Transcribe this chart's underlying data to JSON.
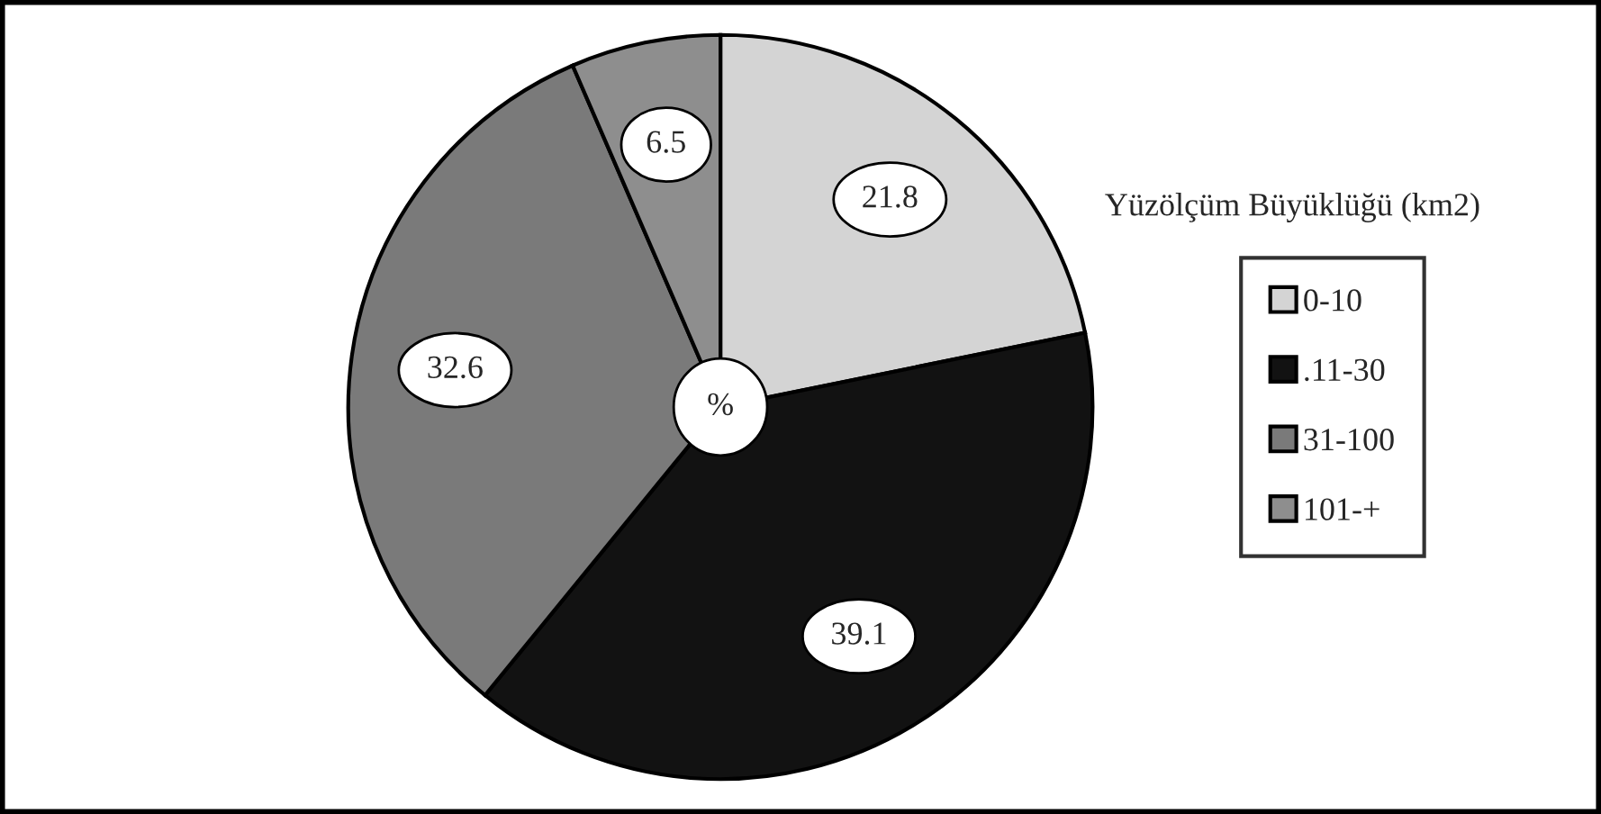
{
  "chart_data": {
    "type": "pie",
    "legend_title": "Yüzölçüm Büyüklüğü (km2)",
    "categories": [
      "0-10",
      ".11-30",
      "31-100",
      "101-+"
    ],
    "values": [
      21.8,
      39.1,
      32.6,
      6.5
    ],
    "colors": [
      "#d4d4d4",
      "#121212",
      "#7a7a7a",
      "#8e8e8e"
    ],
    "data_labels": true,
    "legend": "right",
    "annotations": [
      "%"
    ]
  }
}
